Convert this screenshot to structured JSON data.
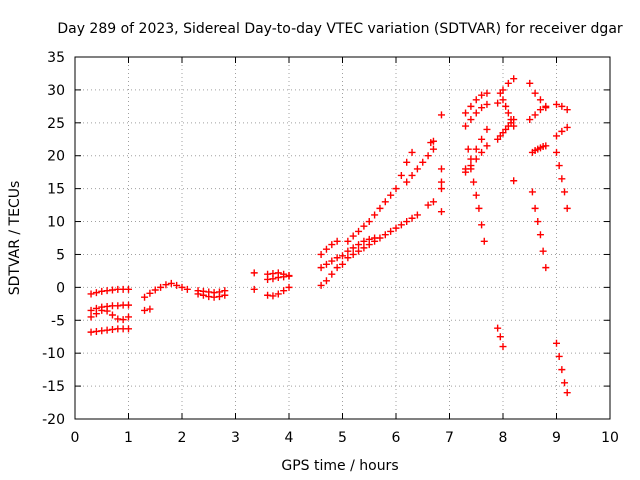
{
  "chart_data": {
    "type": "scatter",
    "title": "Day 289 of 2023, Sidereal Day-to-day VTEC variation (SDTVAR) for receiver dgar",
    "xlabel": "GPS time / hours",
    "ylabel": "SDTVAR / TECUs",
    "xlim": [
      0,
      10
    ],
    "ylim": [
      -20,
      35
    ],
    "xticks": [
      0,
      1,
      2,
      3,
      4,
      5,
      6,
      7,
      8,
      9,
      10
    ],
    "yticks": [
      -20,
      -15,
      -10,
      -5,
      0,
      5,
      10,
      15,
      20,
      25,
      30,
      35
    ],
    "grid": true,
    "legend": "none",
    "marker": "plus",
    "color": "#ff0000",
    "series": [
      {
        "x": [
          0.3,
          0.4,
          0.5,
          0.6,
          0.7,
          0.8,
          0.9,
          1.0
        ],
        "y": [
          -1.0,
          -0.8,
          -0.6,
          -0.5,
          -0.4,
          -0.3,
          -0.3,
          -0.3
        ]
      },
      {
        "x": [
          0.3,
          0.4,
          0.5,
          0.6,
          0.7,
          0.8,
          0.9,
          1.0
        ],
        "y": [
          -3.5,
          -3.2,
          -3.0,
          -2.9,
          -2.8,
          -2.8,
          -2.7,
          -2.7
        ]
      },
      {
        "x": [
          0.3,
          0.4,
          0.5,
          0.6,
          0.7,
          0.8,
          0.9,
          1.0
        ],
        "y": [
          -4.5,
          -4.0,
          -3.5,
          -3.6,
          -4.2,
          -4.8,
          -4.9,
          -4.5
        ]
      },
      {
        "x": [
          0.3,
          0.4,
          0.5,
          0.6,
          0.7,
          0.8,
          0.9,
          1.0
        ],
        "y": [
          -6.8,
          -6.7,
          -6.6,
          -6.5,
          -6.4,
          -6.3,
          -6.3,
          -6.3
        ]
      },
      {
        "x": [
          1.3,
          1.4
        ],
        "y": [
          -3.5,
          -3.3
        ]
      },
      {
        "x": [
          1.3,
          1.4,
          1.5,
          1.6,
          1.7,
          1.8,
          1.9,
          2.0,
          2.1
        ],
        "y": [
          -1.5,
          -0.9,
          -0.4,
          0.0,
          0.4,
          0.6,
          0.3,
          0.0,
          -0.3
        ]
      },
      {
        "x": [
          2.3,
          2.4,
          2.5,
          2.6,
          2.7,
          2.8
        ],
        "y": [
          -0.5,
          -0.6,
          -0.7,
          -0.8,
          -0.7,
          -0.5
        ]
      },
      {
        "x": [
          2.3,
          2.4,
          2.5,
          2.6,
          2.7,
          2.8
        ],
        "y": [
          -1.0,
          -1.2,
          -1.4,
          -1.5,
          -1.4,
          -1.2
        ]
      },
      {
        "x": [
          3.35,
          3.35
        ],
        "y": [
          2.2,
          -0.3
        ]
      },
      {
        "x": [
          3.6,
          3.7,
          3.8,
          3.9,
          4.0
        ],
        "y": [
          2.0,
          2.1,
          2.2,
          2.0,
          1.8
        ]
      },
      {
        "x": [
          3.6,
          3.7,
          3.8,
          3.9,
          4.0
        ],
        "y": [
          1.2,
          1.3,
          1.5,
          1.6,
          1.7
        ]
      },
      {
        "x": [
          3.6,
          3.7,
          3.8,
          3.9,
          4.0
        ],
        "y": [
          -1.2,
          -1.3,
          -1.0,
          -0.5,
          0.0
        ]
      },
      {
        "x": [
          4.6,
          4.7,
          4.8,
          4.9
        ],
        "y": [
          5.0,
          5.8,
          6.5,
          7.0
        ]
      },
      {
        "x": [
          4.6,
          4.7,
          4.8,
          4.9,
          5.0
        ],
        "y": [
          3.0,
          3.5,
          4.0,
          4.5,
          4.8
        ]
      },
      {
        "x": [
          4.6,
          4.7,
          4.8,
          4.9,
          5.0
        ],
        "y": [
          0.3,
          1.0,
          2.0,
          3.0,
          3.5
        ]
      },
      {
        "x": [
          5.1,
          5.2,
          5.3,
          5.4,
          5.5,
          5.6,
          5.7,
          5.8,
          5.9,
          6.0,
          6.1,
          6.2,
          6.3
        ],
        "y": [
          7.0,
          7.8,
          8.5,
          9.3,
          10.0,
          11.0,
          12.0,
          13.0,
          14.0,
          15.0,
          17.0,
          19.0,
          20.5
        ]
      },
      {
        "x": [
          5.1,
          5.2,
          5.3,
          5.4,
          5.5,
          5.6
        ],
        "y": [
          5.5,
          6.0,
          6.5,
          7.0,
          7.3,
          7.5
        ]
      },
      {
        "x": [
          5.1,
          5.2,
          5.3,
          5.4,
          5.5,
          5.6,
          5.7,
          5.8,
          5.9,
          6.0,
          6.1,
          6.2,
          6.3,
          6.4
        ],
        "y": [
          4.5,
          5.0,
          5.5,
          6.0,
          6.5,
          7.0,
          7.5,
          8.0,
          8.5,
          9.0,
          9.5,
          10.0,
          10.5,
          11.0
        ]
      },
      {
        "x": [
          6.2,
          6.3,
          6.4,
          6.5,
          6.6,
          6.7
        ],
        "y": [
          16.0,
          17.0,
          18.0,
          19.0,
          20.0,
          21.0
        ]
      },
      {
        "x": [
          6.6,
          6.7
        ],
        "y": [
          12.5,
          13.0
        ]
      },
      {
        "x": [
          6.65,
          6.7
        ],
        "y": [
          22.0,
          22.2
        ]
      },
      {
        "x": [
          6.85,
          6.85,
          6.85,
          6.85,
          6.85
        ],
        "y": [
          26.2,
          18.0,
          16.0,
          15.0,
          11.5
        ]
      },
      {
        "x": [
          7.3,
          7.4,
          7.5,
          7.6,
          7.7
        ],
        "y": [
          26.5,
          27.5,
          28.5,
          29.2,
          29.5
        ]
      },
      {
        "x": [
          7.3,
          7.4,
          7.5,
          7.6,
          7.7
        ],
        "y": [
          24.5,
          25.5,
          26.5,
          27.3,
          27.8
        ]
      },
      {
        "x": [
          7.3,
          7.4,
          7.5,
          7.6,
          7.7
        ],
        "y": [
          18.0,
          19.5,
          21.0,
          22.5,
          24.0
        ]
      },
      {
        "x": [
          7.3,
          7.4,
          7.5,
          7.6,
          7.7
        ],
        "y": [
          17.5,
          18.5,
          19.5,
          20.5,
          21.5
        ]
      },
      {
        "x": [
          7.35,
          7.4,
          7.45,
          7.5,
          7.55,
          7.6,
          7.65
        ],
        "y": [
          21.0,
          18.0,
          16.0,
          14.0,
          12.0,
          9.5,
          7.0
        ]
      },
      {
        "x": [
          7.9,
          7.95,
          8.0,
          8.05,
          8.1,
          8.15,
          8.2
        ],
        "y": [
          22.5,
          23.0,
          23.5,
          24.0,
          24.5,
          25.0,
          25.5
        ]
      },
      {
        "x": [
          7.9,
          8.0,
          8.1,
          8.2
        ],
        "y": [
          28.0,
          30.0,
          31.0,
          31.7
        ]
      },
      {
        "x": [
          7.95,
          8.0,
          8.05,
          8.1,
          8.15,
          8.2
        ],
        "y": [
          29.5,
          28.5,
          27.5,
          26.5,
          25.5,
          24.5
        ]
      },
      {
        "x": [
          8.2
        ],
        "y": [
          16.2
        ]
      },
      {
        "x": [
          7.9,
          7.95,
          8.0
        ],
        "y": [
          -6.2,
          -7.5,
          -9.0
        ]
      },
      {
        "x": [
          8.5,
          8.6,
          8.7,
          8.8
        ],
        "y": [
          31.0,
          29.5,
          28.5,
          27.5
        ]
      },
      {
        "x": [
          8.5,
          8.6,
          8.7,
          8.8
        ],
        "y": [
          25.5,
          26.2,
          27.0,
          27.3
        ]
      },
      {
        "x": [
          8.55,
          8.6,
          8.65,
          8.7,
          8.75,
          8.8
        ],
        "y": [
          20.5,
          20.8,
          21.0,
          21.2,
          21.4,
          21.5
        ]
      },
      {
        "x": [
          8.55,
          8.6,
          8.65,
          8.7,
          8.75,
          8.8
        ],
        "y": [
          14.5,
          12.0,
          10.0,
          8.0,
          5.5,
          3.0
        ]
      },
      {
        "x": [
          9.0,
          9.1,
          9.2
        ],
        "y": [
          27.8,
          27.5,
          27.0
        ]
      },
      {
        "x": [
          9.0,
          9.1,
          9.2
        ],
        "y": [
          23.0,
          23.7,
          24.3
        ]
      },
      {
        "x": [
          9.0,
          9.05,
          9.1,
          9.15,
          9.2
        ],
        "y": [
          20.5,
          18.5,
          16.5,
          14.5,
          12.0
        ]
      },
      {
        "x": [
          9.0,
          9.05,
          9.1,
          9.15,
          9.2
        ],
        "y": [
          -8.5,
          -10.5,
          -12.5,
          -14.5,
          -16.0
        ]
      }
    ]
  }
}
